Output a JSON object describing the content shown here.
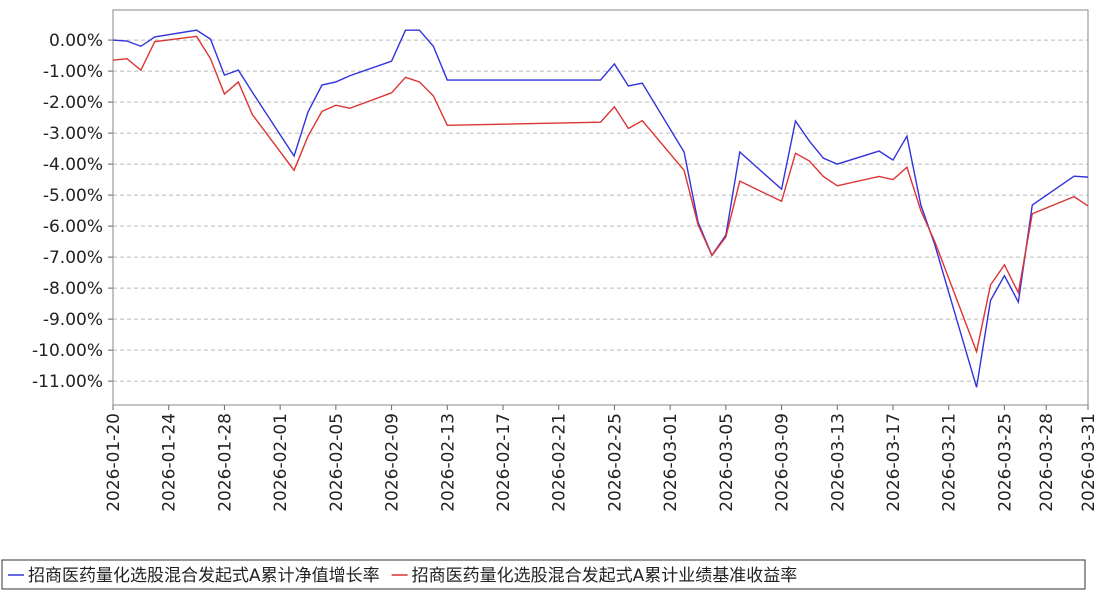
{
  "chart_data": {
    "type": "line",
    "x": [
      "2026-01-20",
      "2026-01-21",
      "2026-01-22",
      "2026-01-23",
      "2026-01-26",
      "2026-01-27",
      "2026-01-28",
      "2026-01-29",
      "2026-01-30",
      "2026-02-02",
      "2026-02-03",
      "2026-02-04",
      "2026-02-05",
      "2026-02-06",
      "2026-02-09",
      "2026-02-10",
      "2026-02-11",
      "2026-02-12",
      "2026-02-13",
      "2026-02-24",
      "2026-02-25",
      "2026-02-26",
      "2026-02-27",
      "2026-03-02",
      "2026-03-03",
      "2026-03-04",
      "2026-03-05",
      "2026-03-06",
      "2026-03-09",
      "2026-03-10",
      "2026-03-11",
      "2026-03-12",
      "2026-03-13",
      "2026-03-16",
      "2026-03-17",
      "2026-03-18",
      "2026-03-19",
      "2026-03-20",
      "2026-03-23",
      "2026-03-24",
      "2026-03-25",
      "2026-03-26",
      "2026-03-27",
      "2026-03-30",
      "2026-03-31"
    ],
    "series": [
      {
        "name": "招商医药量化选股混合发起式A累计净值增长率",
        "color": "#3333dd",
        "values": [
          0.0,
          -0.03,
          -0.2,
          0.1,
          0.32,
          0.03,
          -1.13,
          -0.97,
          -1.68,
          -3.74,
          -2.32,
          -1.45,
          -1.35,
          -1.15,
          -0.68,
          0.32,
          0.32,
          -0.2,
          -1.29,
          -1.29,
          -0.77,
          -1.48,
          -1.39,
          -3.61,
          -5.87,
          -6.94,
          -6.29,
          -3.61,
          -4.81,
          -2.61,
          -3.26,
          -3.81,
          -4.0,
          -3.58,
          -3.87,
          -3.1,
          -5.32,
          -6.6,
          -11.2,
          -8.4,
          -7.6,
          -8.45,
          -5.32,
          -4.39,
          -4.42
        ]
      },
      {
        "name": "招商医药量化选股混合发起式A累计业绩基准收益率",
        "color": "#dd3333",
        "values": [
          -0.65,
          -0.6,
          -0.97,
          -0.05,
          0.12,
          -0.6,
          -1.74,
          -1.35,
          -2.4,
          -4.2,
          -3.1,
          -2.3,
          -2.1,
          -2.2,
          -1.7,
          -1.2,
          -1.35,
          -1.8,
          -2.75,
          -2.65,
          -2.15,
          -2.85,
          -2.6,
          -4.2,
          -5.95,
          -6.95,
          -6.35,
          -4.55,
          -5.2,
          -3.65,
          -3.9,
          -4.4,
          -4.7,
          -4.4,
          -4.5,
          -4.1,
          -5.5,
          -6.5,
          -10.05,
          -7.9,
          -7.25,
          -8.15,
          -5.6,
          -5.05,
          -5.35
        ]
      }
    ],
    "xlim": [
      "2026-01-20",
      "2026-03-31"
    ],
    "xticks": [
      "2026-01-20",
      "2026-01-24",
      "2026-01-28",
      "2026-02-01",
      "2026-02-05",
      "2026-02-09",
      "2026-02-13",
      "2026-02-17",
      "2026-02-21",
      "2026-02-25",
      "2026-03-01",
      "2026-03-05",
      "2026-03-09",
      "2026-03-13",
      "2026-03-17",
      "2026-03-21",
      "2026-03-25",
      "2026-03-28",
      "2026-03-31"
    ],
    "ylim": [
      -11.77,
      0.97
    ],
    "yticks": [
      {
        "value": 0,
        "label": "0.00%"
      },
      {
        "value": -1,
        "label": "-1.00%"
      },
      {
        "value": -2,
        "label": "-2.00%"
      },
      {
        "value": -3,
        "label": "-3.00%"
      },
      {
        "value": -4,
        "label": "-4.00%"
      },
      {
        "value": -5,
        "label": "-5.00%"
      },
      {
        "value": -6,
        "label": "-6.00%"
      },
      {
        "value": -7,
        "label": "-7.00%"
      },
      {
        "value": -8,
        "label": "-8.00%"
      },
      {
        "value": -9,
        "label": "-9.00%"
      },
      {
        "value": -10,
        "label": "-10.00%"
      },
      {
        "value": -11,
        "label": "-11.00%"
      }
    ],
    "grid": true,
    "legend": "bottom"
  }
}
